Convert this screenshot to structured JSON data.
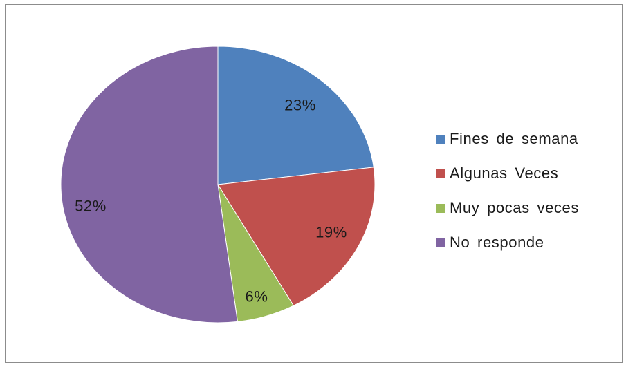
{
  "chart_data": {
    "type": "pie",
    "categories": [
      "Fines de semana",
      "Algunas Veces",
      "Muy pocas veces",
      "No responde"
    ],
    "values": [
      23,
      19,
      6,
      52
    ],
    "labels": [
      "23%",
      "19%",
      "6%",
      "52%"
    ],
    "colors": [
      "#4f81bd",
      "#c0504d",
      "#9bbb59",
      "#8064a2"
    ],
    "legend": "right"
  }
}
